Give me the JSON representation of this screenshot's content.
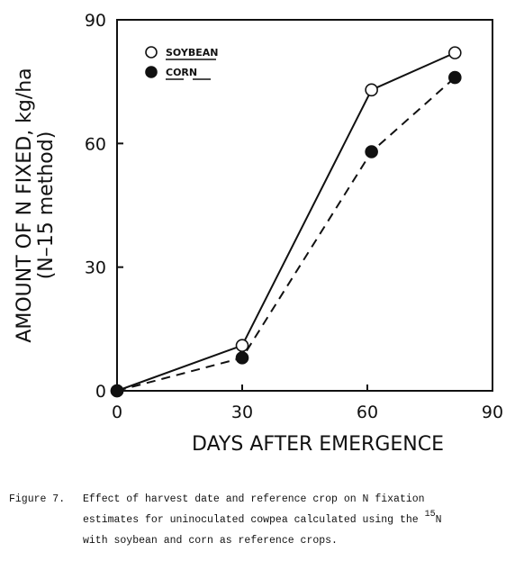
{
  "chart_data": {
    "type": "line",
    "x": [
      0,
      30,
      61,
      81
    ],
    "series": [
      {
        "name": "SOYBEAN",
        "color": "#111111",
        "marker_fill": "#ffffff",
        "line_style": "solid",
        "values": [
          0,
          11,
          73,
          82
        ]
      },
      {
        "name": "CORN",
        "color": "#111111",
        "marker_fill": "#111111",
        "line_style": "dashed",
        "values": [
          0,
          8,
          58,
          76
        ]
      }
    ],
    "xlim": [
      0,
      90
    ],
    "xticks": [
      0,
      30,
      60,
      90
    ],
    "ylim": [
      0,
      90
    ],
    "yticks": [
      0,
      30,
      60,
      90
    ],
    "x_label": "DAYS AFTER EMERGENCE",
    "y_label": [
      "AMOUNT OF N FIXED, kg/ha",
      "(N–15 method)"
    ],
    "legend": "upper-left"
  },
  "caption": {
    "label": "Figure 7.",
    "lines": [
      "Effect of harvest date and reference crop on N fixation",
      "estimates for uninoculated cowpea calculated using the",
      "with soybean and corn as reference crops."
    ],
    "superscript": "15",
    "isotope": "N"
  }
}
